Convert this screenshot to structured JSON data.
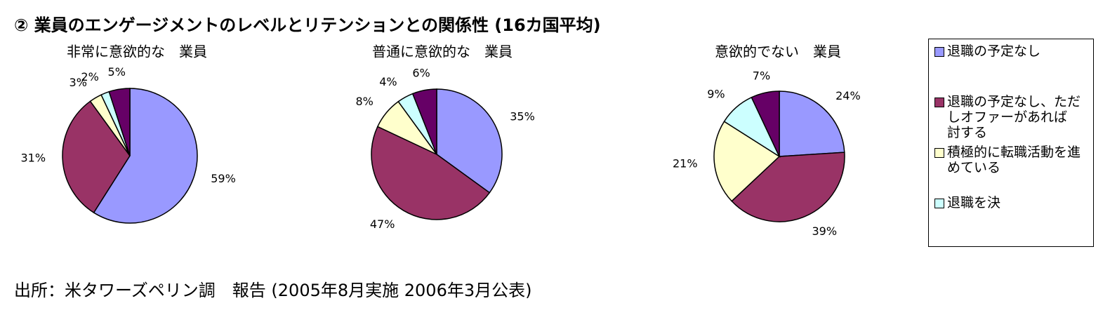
{
  "title": "② 業員のエンゲージメントのレベルとリテンションとの関係性 (16カ国平均)",
  "source": "出所：米タワーズペリン調　報告 (2005年8月実施 2006年3月公表)",
  "legend": [
    {
      "name": "退職の予定なし",
      "color": "#9999ff"
    },
    {
      "name": "退職の予定なし、ただしオファーがあれば　討する",
      "color": "#993366"
    },
    {
      "name": "積極的に転職活動を進めている",
      "color": "#ffffcc"
    },
    {
      "name": "退職を決",
      "color": "#ccffff"
    }
  ],
  "chart_data": [
    {
      "type": "pie",
      "title": "非常に意欲的な　業員",
      "values": [
        59,
        31,
        3,
        2,
        5
      ],
      "value_labels": [
        "59%",
        "31%",
        "3%",
        "2%",
        "5%"
      ],
      "colors": [
        "#9999ff",
        "#993366",
        "#ffffcc",
        "#ccffff",
        "#660066"
      ]
    },
    {
      "type": "pie",
      "title": "普通に意欲的な　業員",
      "values": [
        35,
        47,
        8,
        4,
        6
      ],
      "value_labels": [
        "35%",
        "47%",
        "8%",
        "4%",
        "6%"
      ],
      "colors": [
        "#9999ff",
        "#993366",
        "#ffffcc",
        "#ccffff",
        "#660066"
      ]
    },
    {
      "type": "pie",
      "title": "意欲的でない　業員",
      "values": [
        24,
        39,
        21,
        9,
        7
      ],
      "value_labels": [
        "24%",
        "39%",
        "21%",
        "9%",
        "7%"
      ],
      "colors": [
        "#9999ff",
        "#993366",
        "#ffffcc",
        "#ccffff",
        "#660066"
      ]
    }
  ]
}
